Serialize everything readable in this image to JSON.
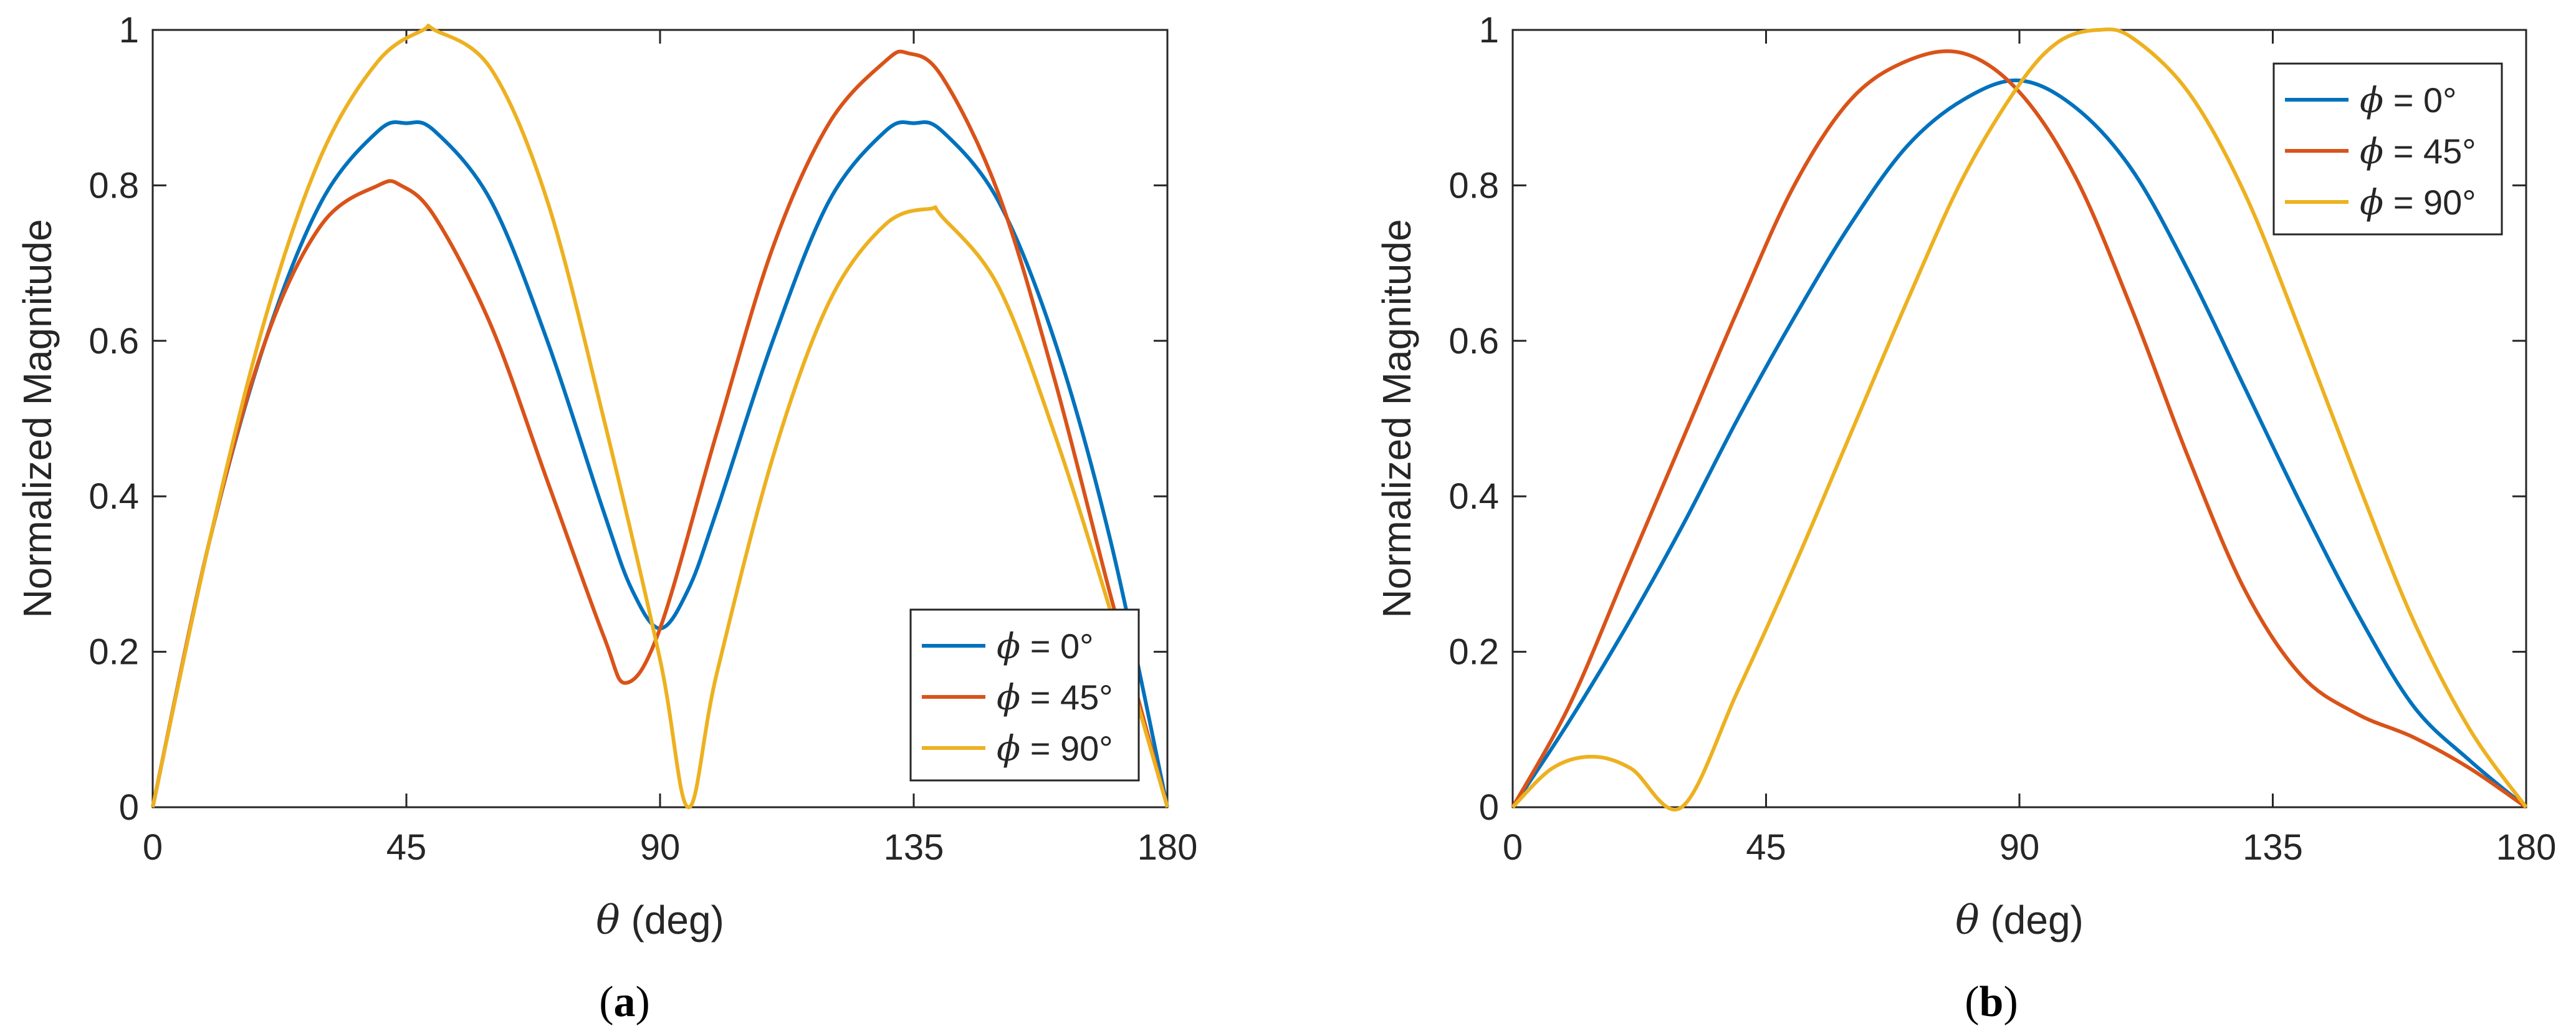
{
  "colors": {
    "phi0": "#0072BD",
    "phi45": "#D95319",
    "phi90": "#EDB120",
    "axis": "#262626"
  },
  "chart_data": [
    {
      "type": "line",
      "panel_label": "a",
      "panel_label_open": "(",
      "panel_label_close": ")",
      "xlabel_symbol": "θ",
      "xlabel_rest": " (deg)",
      "ylabel": "Normalized Magnitude",
      "xlim": [
        0,
        180
      ],
      "ylim": [
        0,
        1
      ],
      "xticks": [
        0,
        45,
        90,
        135,
        180
      ],
      "xtick_labels": [
        "0",
        "45",
        "90",
        "135",
        "180"
      ],
      "yticks": [
        0,
        0.2,
        0.4,
        0.6,
        0.8,
        1
      ],
      "ytick_labels": [
        "0",
        "0.2",
        "0.4",
        "0.6",
        "0.8",
        "1"
      ],
      "legend_position": "bottom-right",
      "series": [
        {
          "name": "ϕ = 0°",
          "symbol": "ϕ",
          "label": " = 0°",
          "color_key": "phi0",
          "x": [
            0,
            10,
            20,
            30,
            40,
            45,
            50,
            60,
            70,
            80,
            85,
            90,
            95,
            100,
            110,
            120,
            130,
            135,
            140,
            150,
            160,
            170,
            180
          ],
          "y": [
            0,
            0.34,
            0.6,
            0.78,
            0.87,
            0.88,
            0.87,
            0.78,
            0.6,
            0.38,
            0.28,
            0.23,
            0.28,
            0.38,
            0.6,
            0.78,
            0.87,
            0.88,
            0.87,
            0.78,
            0.6,
            0.34,
            0
          ]
        },
        {
          "name": "ϕ = 45°",
          "symbol": "ϕ",
          "label": " = 45°",
          "color_key": "phi45",
          "x": [
            0,
            10,
            20,
            30,
            40,
            44,
            50,
            60,
            70,
            80,
            84,
            90,
            100,
            110,
            120,
            130,
            134,
            140,
            150,
            160,
            170,
            180
          ],
          "y": [
            0,
            0.34,
            0.6,
            0.75,
            0.8,
            0.8,
            0.76,
            0.62,
            0.42,
            0.22,
            0.16,
            0.23,
            0.48,
            0.72,
            0.88,
            0.96,
            0.97,
            0.94,
            0.79,
            0.55,
            0.27,
            0
          ]
        },
        {
          "name": "ϕ = 90°",
          "symbol": "ϕ",
          "label": " = 90°",
          "color_key": "phi90",
          "x": [
            0,
            10,
            20,
            30,
            40,
            48,
            50,
            60,
            70,
            80,
            90,
            95,
            100,
            110,
            120,
            130,
            138,
            140,
            150,
            160,
            170,
            180
          ],
          "y": [
            0,
            0.34,
            0.63,
            0.84,
            0.96,
            1.0,
            1.0,
            0.95,
            0.78,
            0.5,
            0.19,
            0,
            0.17,
            0.45,
            0.65,
            0.75,
            0.77,
            0.76,
            0.67,
            0.48,
            0.25,
            0
          ]
        }
      ]
    },
    {
      "type": "line",
      "panel_label": "b",
      "panel_label_open": "(",
      "panel_label_close": ")",
      "xlabel_symbol": "θ",
      "xlabel_rest": " (deg)",
      "ylabel": "Normalized Magnitude",
      "xlim": [
        0,
        180
      ],
      "ylim": [
        0,
        1
      ],
      "xticks": [
        0,
        45,
        90,
        135,
        180
      ],
      "xtick_labels": [
        "0",
        "45",
        "90",
        "135",
        "180"
      ],
      "yticks": [
        0,
        0.2,
        0.4,
        0.6,
        0.8,
        1
      ],
      "ytick_labels": [
        "0",
        "0.2",
        "0.4",
        "0.6",
        "0.8",
        "1"
      ],
      "legend_position": "top-right",
      "series": [
        {
          "name": "ϕ = 0°",
          "symbol": "ϕ",
          "label": " = 0°",
          "color_key": "phi0",
          "x": [
            0,
            10,
            20,
            30,
            40,
            50,
            60,
            70,
            80,
            90,
            100,
            110,
            120,
            130,
            140,
            150,
            160,
            170,
            180
          ],
          "y": [
            0,
            0.11,
            0.23,
            0.36,
            0.5,
            0.63,
            0.75,
            0.85,
            0.91,
            0.935,
            0.9,
            0.82,
            0.69,
            0.54,
            0.39,
            0.25,
            0.13,
            0.06,
            0
          ]
        },
        {
          "name": "ϕ = 45°",
          "symbol": "ϕ",
          "label": " = 45°",
          "color_key": "phi45",
          "x": [
            0,
            10,
            20,
            30,
            40,
            50,
            60,
            70,
            80,
            90,
            100,
            110,
            120,
            130,
            140,
            150,
            160,
            170,
            180
          ],
          "y": [
            0,
            0.13,
            0.3,
            0.47,
            0.64,
            0.8,
            0.91,
            0.96,
            0.97,
            0.92,
            0.81,
            0.64,
            0.45,
            0.28,
            0.17,
            0.12,
            0.09,
            0.05,
            0
          ]
        },
        {
          "name": "ϕ = 90°",
          "symbol": "ϕ",
          "label": " = 90°",
          "color_key": "phi90",
          "x": [
            0,
            7,
            14,
            21,
            30,
            40,
            50,
            60,
            70,
            80,
            90,
            97,
            104,
            110,
            120,
            130,
            140,
            150,
            160,
            170,
            180
          ],
          "y": [
            0,
            0.05,
            0.065,
            0.05,
            0,
            0.15,
            0.31,
            0.48,
            0.65,
            0.81,
            0.93,
            0.985,
            1.0,
            0.99,
            0.92,
            0.79,
            0.61,
            0.42,
            0.24,
            0.1,
            0
          ]
        }
      ]
    }
  ]
}
